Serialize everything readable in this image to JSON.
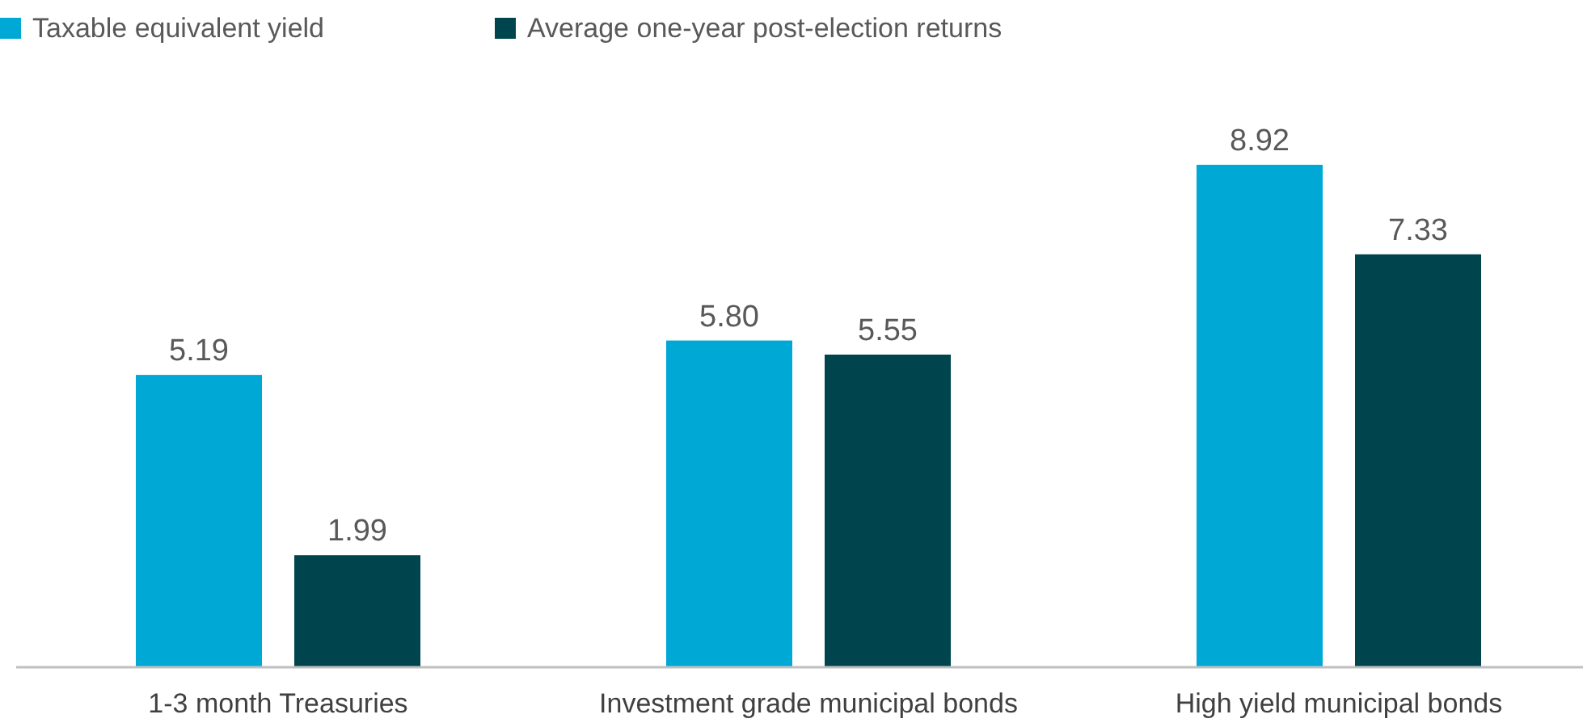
{
  "chart_data": {
    "type": "bar",
    "categories": [
      "1-3 month Treasuries",
      "Investment grade municipal bonds",
      "High yield municipal bonds"
    ],
    "series": [
      {
        "name": "Taxable equivalent yield",
        "color": "#00a8d6",
        "values": [
          5.19,
          5.8,
          8.92
        ],
        "value_labels": [
          "5.19",
          "5.80",
          "8.92"
        ]
      },
      {
        "name": "Average one-year post-election returns",
        "color": "#00454e",
        "values": [
          1.99,
          5.55,
          7.33
        ],
        "value_labels": [
          "1.99",
          "5.55",
          "7.33"
        ]
      }
    ],
    "legend": "top left"
  }
}
